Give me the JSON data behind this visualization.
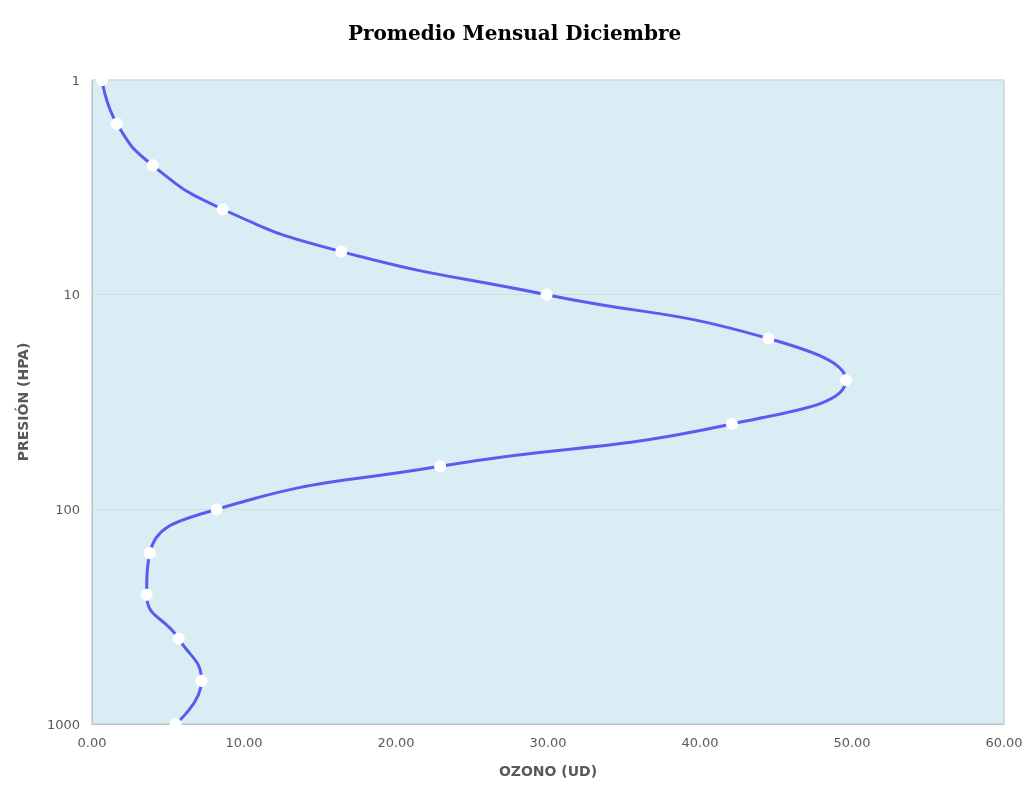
{
  "chart_data": {
    "type": "line",
    "title": "Promedio Mensual Diciembre",
    "xlabel": "OZONO (UD)",
    "ylabel": "PRESIÓN (HPA)",
    "series": [
      {
        "color": "#5b5bef",
        "x": [
          0.66,
          1.64,
          4.0,
          8.6,
          16.4,
          29.9,
          44.5,
          49.6,
          42.1,
          22.9,
          8.2,
          3.8,
          3.6,
          5.7,
          7.2,
          5.5
        ],
        "values": [
          1,
          1.6,
          2.5,
          4,
          6.3,
          10,
          16,
          25,
          40,
          63,
          100,
          160,
          250,
          400,
          630,
          1000
        ]
      }
    ],
    "log": "y",
    "xlim": [
      0,
      60
    ],
    "xticks": [
      {
        "value": 0,
        "label": "0.00"
      },
      {
        "value": 10,
        "label": "10.00"
      },
      {
        "value": 20,
        "label": "20.00"
      },
      {
        "value": 30,
        "label": "30.00"
      },
      {
        "value": 40,
        "label": "40.00"
      },
      {
        "value": 50,
        "label": "50.00"
      },
      {
        "value": 60,
        "label": "60.00"
      }
    ],
    "ylim": [
      1000,
      1
    ],
    "yticks": [
      1,
      10,
      100,
      1000
    ],
    "grid": "y",
    "marker": "circle",
    "line_style": "solid"
  }
}
